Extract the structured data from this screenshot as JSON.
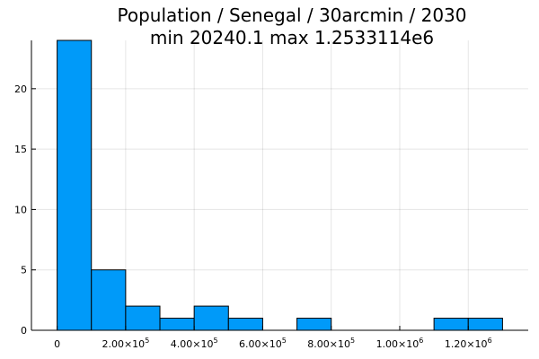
{
  "chart_data": {
    "type": "bar",
    "title": "Population / Senegal / 30arcmin / 2030",
    "subtitle": "min 20240.1  max 1.2533114e6",
    "xlabel": "",
    "ylabel": "",
    "bin_width": 100000,
    "bins": [
      {
        "start": 0,
        "end": 100000,
        "count": 24
      },
      {
        "start": 100000,
        "end": 200000,
        "count": 5
      },
      {
        "start": 200000,
        "end": 300000,
        "count": 2
      },
      {
        "start": 300000,
        "end": 400000,
        "count": 1
      },
      {
        "start": 400000,
        "end": 500000,
        "count": 2
      },
      {
        "start": 500000,
        "end": 600000,
        "count": 1
      },
      {
        "start": 600000,
        "end": 700000,
        "count": 0
      },
      {
        "start": 700000,
        "end": 800000,
        "count": 1
      },
      {
        "start": 800000,
        "end": 900000,
        "count": 0
      },
      {
        "start": 900000,
        "end": 1000000,
        "count": 0
      },
      {
        "start": 1000000,
        "end": 1100000,
        "count": 0
      },
      {
        "start": 1100000,
        "end": 1200000,
        "count": 1
      },
      {
        "start": 1200000,
        "end": 1300000,
        "count": 1
      }
    ],
    "xlim": [
      -75000,
      1375000
    ],
    "ylim": [
      0,
      24
    ],
    "xticks": [
      {
        "value": 0,
        "mantissa": "0",
        "exp": ""
      },
      {
        "value": 200000,
        "mantissa": "2.00×10",
        "exp": "5"
      },
      {
        "value": 400000,
        "mantissa": "4.00×10",
        "exp": "5"
      },
      {
        "value": 600000,
        "mantissa": "6.00×10",
        "exp": "5"
      },
      {
        "value": 800000,
        "mantissa": "8.00×10",
        "exp": "5"
      },
      {
        "value": 1000000,
        "mantissa": "1.00×10",
        "exp": "6"
      },
      {
        "value": 1200000,
        "mantissa": "1.20×10",
        "exp": "6"
      }
    ],
    "yticks": [
      {
        "value": 0,
        "label": "0"
      },
      {
        "value": 5,
        "label": "5"
      },
      {
        "value": 10,
        "label": "10"
      },
      {
        "value": 15,
        "label": "15"
      },
      {
        "value": 20,
        "label": "20"
      }
    ],
    "grid": true,
    "legend": "none",
    "bar_color": "#009af9"
  }
}
